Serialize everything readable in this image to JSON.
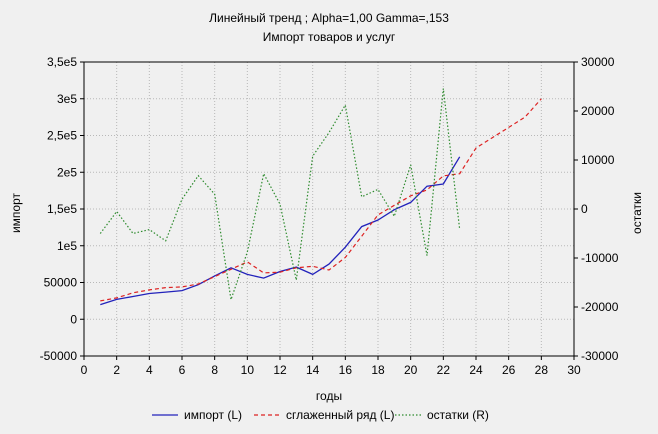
{
  "chart_data": {
    "type": "line",
    "title": "Линейный тренд ; Alpha=1,00 Gamma=,153",
    "subtitle": "Импорт товаров и услуг",
    "xlabel": "годы",
    "ylabel_left": "импорт",
    "ylabel_right": "остатки",
    "xlim": [
      0,
      30
    ],
    "ylim_left": [
      -50000,
      350000
    ],
    "ylim_right": [
      -30000,
      30000
    ],
    "grid": true,
    "legend_position": "bottom",
    "x_ticks": [
      "0",
      "2",
      "4",
      "6",
      "8",
      "10",
      "12",
      "14",
      "16",
      "18",
      "20",
      "22",
      "24",
      "26",
      "28",
      "30"
    ],
    "y_left_ticks": [
      "3,5e5",
      "3e5",
      "2,5e5",
      "2e5",
      "1,5e5",
      "1e5",
      "50000",
      "0",
      "-50000"
    ],
    "y_right_ticks": [
      "30000",
      "20000",
      "10000",
      "0",
      "-10000",
      "-20000",
      "-30000"
    ],
    "series": [
      {
        "name": "импорт (L)",
        "axis": "left",
        "color": "#2222bb",
        "style": "solid",
        "x": [
          1,
          2,
          3,
          4,
          5,
          6,
          7,
          8,
          9,
          10,
          11,
          12,
          13,
          14,
          15,
          16,
          17,
          18,
          19,
          20,
          21,
          22,
          23
        ],
        "values": [
          20000,
          27000,
          31000,
          35000,
          37000,
          39000,
          47000,
          59000,
          70000,
          61000,
          56000,
          65000,
          71000,
          61000,
          75000,
          98000,
          126000,
          135000,
          149000,
          159000,
          181000,
          184000,
          221000
        ]
      },
      {
        "name": "сглаженный ряд (L)",
        "axis": "left",
        "color": "#dd2222",
        "style": "dashed",
        "x": [
          1,
          2,
          3,
          4,
          5,
          6,
          7,
          8,
          9,
          10,
          11,
          12,
          13,
          14,
          15,
          16,
          17,
          18,
          19,
          20,
          21,
          22,
          23,
          24,
          25,
          26,
          27,
          28
        ],
        "values": [
          25000,
          29000,
          36000,
          40000,
          43000,
          44000,
          48000,
          58000,
          68000,
          78000,
          63000,
          64000,
          70000,
          72000,
          67000,
          84000,
          113000,
          142000,
          155000,
          168000,
          176000,
          195000,
          198000,
          233000,
          247000,
          261000,
          275000,
          300000
        ]
      },
      {
        "name": "остатки (R)",
        "axis": "right",
        "color": "#2e8b2e",
        "style": "dotted",
        "x": [
          1,
          2,
          3,
          4,
          5,
          6,
          7,
          8,
          9,
          10,
          11,
          12,
          13,
          14,
          15,
          16,
          17,
          18,
          19,
          20,
          21,
          22,
          23
        ],
        "values": [
          -5000,
          -500,
          -5000,
          -4200,
          -6500,
          2000,
          6800,
          3000,
          -18500,
          -8800,
          7200,
          1000,
          -14500,
          10800,
          15600,
          21200,
          2500,
          4000,
          -1500,
          9000,
          -9500,
          24600,
          -4200
        ]
      }
    ]
  }
}
